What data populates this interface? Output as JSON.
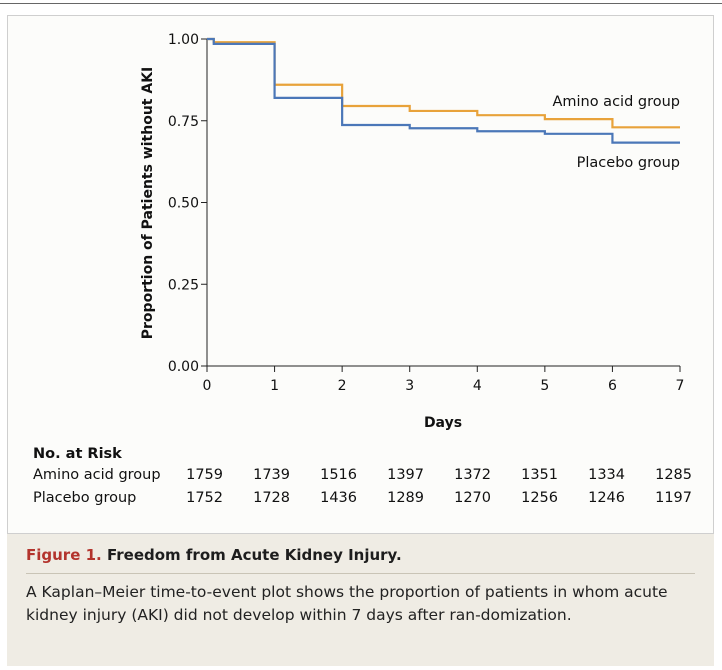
{
  "chart_data": {
    "type": "line",
    "ylabel": "Proportion of Patients without AKI",
    "xlabel": "Days",
    "xlim": [
      0,
      7
    ],
    "ylim": [
      0,
      1
    ],
    "x_ticks": [
      "0",
      "1",
      "2",
      "3",
      "4",
      "5",
      "6",
      "7"
    ],
    "y_ticks": [
      "0.00",
      "0.25",
      "0.50",
      "0.75",
      "1.00"
    ],
    "series": [
      {
        "name": "Amino acid group",
        "color": "#e8a23a",
        "steps": [
          [
            0,
            1.0
          ],
          [
            0.1,
            0.99
          ],
          [
            1,
            0.86
          ],
          [
            2,
            0.795
          ],
          [
            3,
            0.78
          ],
          [
            4,
            0.767
          ],
          [
            5,
            0.755
          ],
          [
            6,
            0.73
          ],
          [
            7,
            0.73
          ]
        ]
      },
      {
        "name": "Placebo group",
        "color": "#4b77b8",
        "steps": [
          [
            0,
            1.0
          ],
          [
            0.1,
            0.985
          ],
          [
            1,
            0.82
          ],
          [
            2,
            0.737
          ],
          [
            3,
            0.727
          ],
          [
            4,
            0.718
          ],
          [
            5,
            0.71
          ],
          [
            6,
            0.683
          ],
          [
            7,
            0.683
          ]
        ]
      }
    ]
  },
  "risk_table": {
    "title": "No. at Risk",
    "rows": [
      {
        "label": "Amino acid group",
        "values": [
          "1759",
          "1739",
          "1516",
          "1397",
          "1372",
          "1351",
          "1334",
          "1285"
        ]
      },
      {
        "label": "Placebo group",
        "values": [
          "1752",
          "1728",
          "1436",
          "1289",
          "1270",
          "1256",
          "1246",
          "1197"
        ]
      }
    ]
  },
  "caption": {
    "figure": "Figure 1.",
    "title": "Freedom from Acute Kidney Injury.",
    "text": "A Kaplan–Meier time-to-event plot shows the proportion of patients in whom acute kidney injury (AKI) did not develop within 7 days after ran-domization."
  }
}
